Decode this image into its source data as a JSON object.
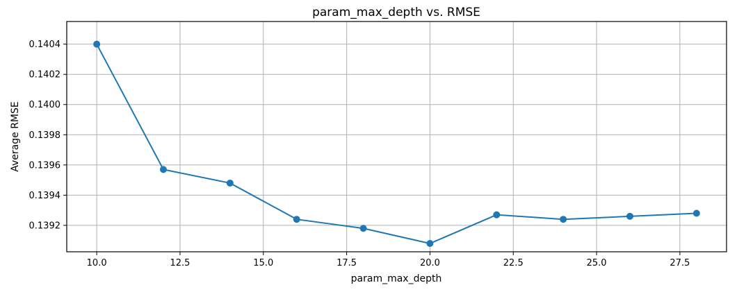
{
  "chart_data": {
    "type": "line",
    "title": "param_max_depth vs. RMSE",
    "xlabel": "param_max_depth",
    "ylabel": "Average RMSE",
    "xlim": [
      9.1,
      28.9
    ],
    "ylim": [
      0.139025,
      0.14055
    ],
    "xticks": [
      10.0,
      12.5,
      15.0,
      17.5,
      20.0,
      22.5,
      25.0,
      27.5
    ],
    "xtick_labels": [
      "10.0",
      "12.5",
      "15.0",
      "17.5",
      "20.0",
      "22.5",
      "25.0",
      "27.5"
    ],
    "yticks": [
      0.1392,
      0.1394,
      0.1396,
      0.1398,
      0.14,
      0.1402,
      0.1404
    ],
    "ytick_labels": [
      "0.1392",
      "0.1394",
      "0.1396",
      "0.1398",
      "0.1400",
      "0.1402",
      "0.1404"
    ],
    "grid": true,
    "series": [
      {
        "color": "#1f77b4",
        "marker": "circle",
        "x": [
          10,
          12,
          14,
          16,
          18,
          20,
          22,
          24,
          26,
          28
        ],
        "y": [
          0.1404,
          0.13957,
          0.13948,
          0.13924,
          0.13918,
          0.13908,
          0.13927,
          0.13924,
          0.13926,
          0.13928
        ]
      }
    ]
  }
}
